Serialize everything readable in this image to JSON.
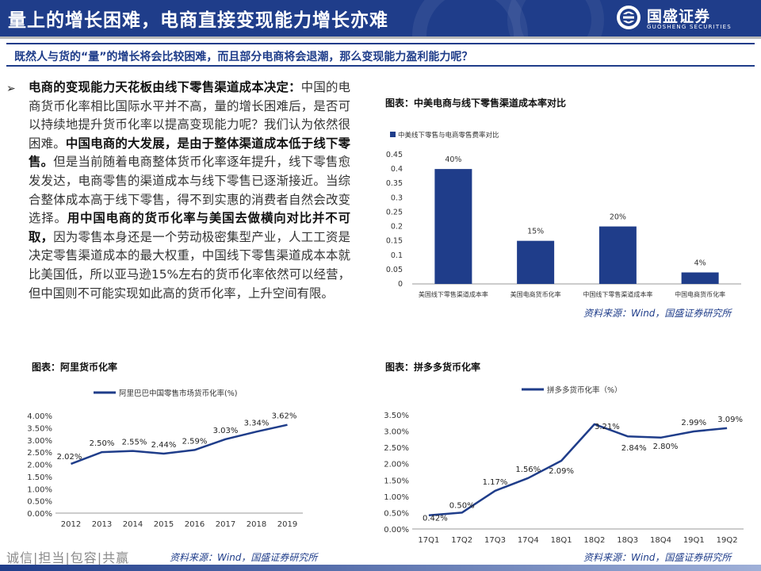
{
  "header": {
    "title": "量上的增长困难，电商直接变现能力增长亦难",
    "logo_text": "国盛证券",
    "logo_subtext": "GUOSHENG SECURITIES"
  },
  "subtitle": "既然人与货的“量”的增长将会比较困难，而且部分电商将会退潮，那么变现能力盈利能力呢？",
  "body": {
    "bullet": "➢",
    "para": [
      {
        "t": "电商的变现能力天花板由线下零售渠道成本决定：",
        "b": true
      },
      {
        "t": "中国的电商货币化率相比国际水平并不高，量的增长困难后，是否可以持续地提升货币化率以提高变现能力呢？我们认为依然很困难。",
        "b": false
      },
      {
        "t": "中国电商的大发展，是由于整体渠道成本低于线下零售。",
        "b": true
      },
      {
        "t": "但是当前随着电商整体货币化率逐年提升，线下零售愈发发达，电商零售的渠道成本与线下零售已逐渐接近。当综合整体成本高于线下零售，得不到实惠的消费者自然会改变选择。",
        "b": false
      },
      {
        "t": "用中国电商的货币化率与美国去做横向对比并不可取，",
        "b": true
      },
      {
        "t": "因为零售本身还是一个劳动极密集型产业，人工工资是决定零售渠道成本的最大权重，中国线下零售渠道成本本就比美国低，所以亚马逊15%左右的货币化率依然可以经营，但中国则不可能实现如此高的货币化率，上升空间有限。",
        "b": false
      }
    ]
  },
  "chart1": {
    "label": "图表：中美电商与线下零售渠道成本率对比",
    "source": "资料来源：Wind，国盛证券研究所"
  },
  "chart2": {
    "label": "图表：阿里货币化率"
  },
  "chart3": {
    "label": "图表：拼多多货币化率",
    "source": "资料来源：Wind，国盛证券研究所"
  },
  "footer": {
    "motto": "诚信|担当|包容|共赢",
    "source": "资料来源：Wind，国盛证券研究所"
  },
  "colors": {
    "primary": "#1f3d8a",
    "bar": "#1f3d8a",
    "line": "#1f3d8a"
  },
  "chart_data": [
    {
      "type": "bar",
      "title": "",
      "legend": "中美线下零售与电商零售费率对比",
      "legend_position": "top-left",
      "categories": [
        "美国线下零售渠道成本率",
        "美国电商货币化率",
        "中国线下零售渠道成本率",
        "中国电商货币化率"
      ],
      "values": [
        0.4,
        0.15,
        0.2,
        0.04
      ],
      "data_labels": [
        "40%",
        "15%",
        "20%",
        "4%"
      ],
      "ylim": [
        0,
        0.45
      ],
      "yticks": [
        "0",
        "0.05",
        "0.1",
        "0.15",
        "0.2",
        "0.25",
        "0.3",
        "0.35",
        "0.4",
        "0.45"
      ],
      "grid": false
    },
    {
      "type": "line",
      "title": "",
      "legend": "阿里巴巴中国零售市场货币化率(%)",
      "legend_position": "top",
      "x": [
        "2012",
        "2013",
        "2014",
        "2015",
        "2016",
        "2017",
        "2018",
        "2019"
      ],
      "values": [
        2.02,
        2.5,
        2.55,
        2.44,
        2.59,
        3.03,
        3.34,
        3.62
      ],
      "data_labels": [
        "2.02%",
        "2.50%",
        "2.55%",
        "2.44%",
        "2.59%",
        "3.03%",
        "3.34%",
        "3.62%"
      ],
      "ylim": [
        0,
        4.0
      ],
      "yticks": [
        "0.00%",
        "0.50%",
        "1.00%",
        "1.50%",
        "2.00%",
        "2.50%",
        "3.00%",
        "3.50%",
        "4.00%"
      ],
      "grid": false
    },
    {
      "type": "line",
      "title": "",
      "legend": "拼多多货币化率（%）",
      "legend_position": "top",
      "x": [
        "17Q1",
        "17Q2",
        "17Q3",
        "17Q4",
        "18Q1",
        "18Q2",
        "18Q3",
        "18Q4",
        "19Q1",
        "19Q2"
      ],
      "values": [
        0.42,
        0.5,
        1.17,
        1.56,
        2.09,
        3.21,
        2.84,
        2.8,
        2.99,
        3.09
      ],
      "data_labels": [
        "0.42%",
        "0.50%",
        "1.17%",
        "1.56%",
        "2.09%",
        "3.21%",
        "2.84%",
        "2.80%",
        "2.99%",
        "3.09%"
      ],
      "ylim": [
        0,
        3.5
      ],
      "yticks": [
        "0.00%",
        "0.50%",
        "1.00%",
        "1.50%",
        "2.00%",
        "2.50%",
        "3.00%",
        "3.50%"
      ],
      "grid": false
    }
  ]
}
